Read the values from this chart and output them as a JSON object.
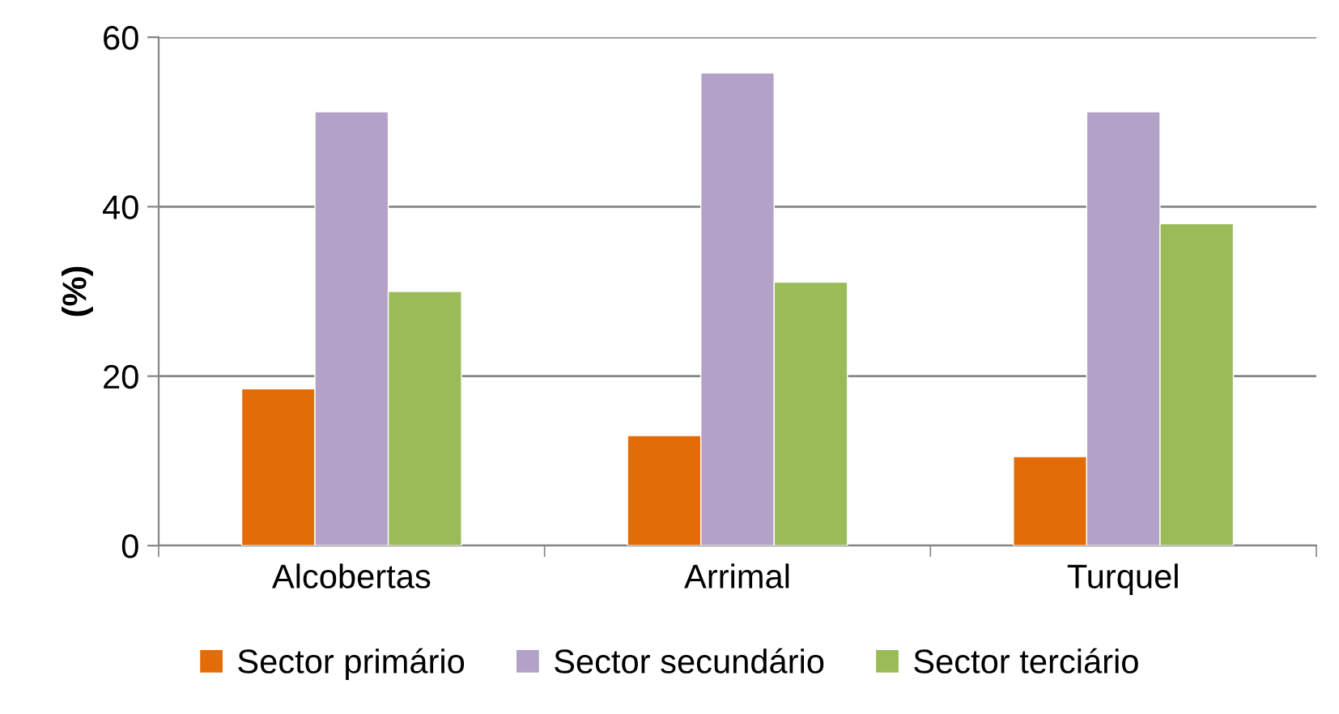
{
  "chart_data": {
    "type": "bar",
    "ylabel": "(%)",
    "categories": [
      "Alcobertas",
      "Arrimal",
      "Turquel"
    ],
    "series": [
      {
        "name": "Sector primário",
        "color": "#e36c09",
        "values": [
          18.5,
          13.0,
          10.5
        ]
      },
      {
        "name": "Sector secundário",
        "color": "#b3a2c7",
        "values": [
          51.2,
          55.8,
          51.2
        ]
      },
      {
        "name": "Sector terciário",
        "color": "#9bbb59",
        "values": [
          30.0,
          31.1,
          38.0
        ]
      }
    ],
    "ylim": [
      0,
      60
    ],
    "yticks": [
      0,
      20,
      40,
      60
    ],
    "grid": "y",
    "legend": "bottom"
  }
}
